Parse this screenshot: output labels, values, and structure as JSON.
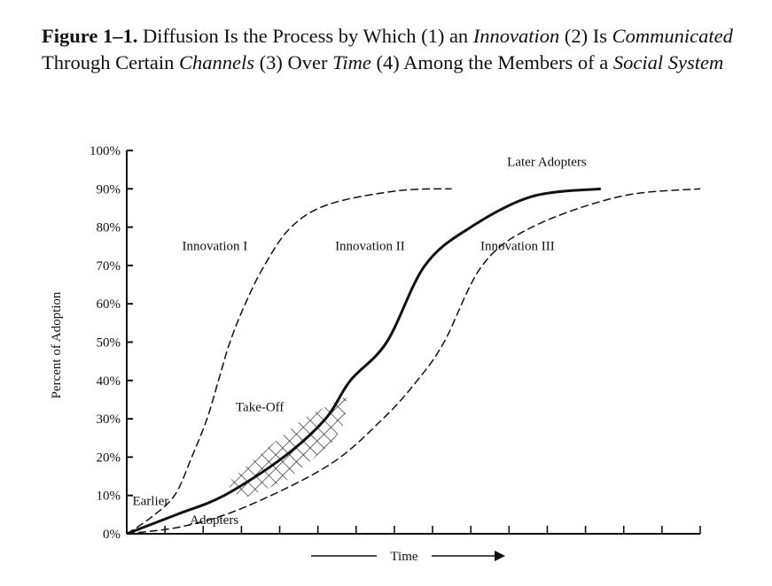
{
  "caption": {
    "segments": [
      {
        "text": "Figure 1–1.",
        "style": "bold"
      },
      {
        "text": " Diffusion Is the Process by Which (1) an ",
        "style": "normal"
      },
      {
        "text": "Innovation",
        "style": "italic"
      },
      {
        "text": " (2) Is ",
        "style": "normal"
      },
      {
        "text": "Communicated",
        "style": "italic"
      },
      {
        "text": " Through Certain ",
        "style": "normal"
      },
      {
        "text": "Channels",
        "style": "italic"
      },
      {
        "text": " (3) Over ",
        "style": "normal"
      },
      {
        "text": "Time",
        "style": "italic"
      },
      {
        "text": " (4) Among the Members of a ",
        "style": "normal"
      },
      {
        "text": "Social System",
        "style": "italic"
      }
    ]
  },
  "chart_data": {
    "type": "line",
    "title": "",
    "xlabel": "Time",
    "ylabel": "Percent of Adoption",
    "xlim": [
      0,
      15
    ],
    "ylim": [
      0,
      100
    ],
    "x_ticks_count": 15,
    "x_tick_labels": [],
    "y_ticks": [
      0,
      10,
      20,
      30,
      40,
      50,
      60,
      70,
      80,
      90,
      100
    ],
    "y_tick_labels": [
      "0%",
      "10%",
      "20%",
      "30%",
      "40%",
      "50%",
      "60%",
      "70%",
      "80%",
      "90%",
      "100%"
    ],
    "grid": false,
    "legend": "none",
    "series": [
      {
        "name": "Innovation I",
        "style": "dashed",
        "x": [
          0,
          0.6,
          1.25,
          1.7,
          2.1,
          2.4,
          2.7,
          3.1,
          3.6,
          4.3,
          5.3,
          7.1,
          8.5
        ],
        "y": [
          0,
          4,
          10,
          20,
          30,
          40,
          50,
          60,
          70,
          80,
          86,
          89.5,
          90
        ]
      },
      {
        "name": "Innovation II",
        "style": "solid",
        "x": [
          0,
          1.3,
          2.55,
          4.1,
          5.2,
          5.85,
          6.8,
          7.8,
          9.0,
          10.6,
          12.4
        ],
        "y": [
          0,
          5,
          10,
          20,
          30,
          40,
          50,
          70,
          80,
          88,
          90
        ]
      },
      {
        "name": "Innovation III",
        "style": "dashed",
        "x": [
          0,
          1.5,
          3.1,
          5.3,
          6.7,
          7.6,
          8.3,
          9.3,
          10.6,
          12.9,
          15
        ],
        "y": [
          0,
          2,
          7,
          18,
          30,
          40,
          50,
          70,
          80,
          88,
          90
        ]
      }
    ],
    "annotations": [
      {
        "text": "Innovation I",
        "x": 1.45,
        "y": 74
      },
      {
        "text": "Innovation II",
        "x": 5.45,
        "y": 74
      },
      {
        "text": "Innovation III",
        "x": 9.25,
        "y": 74
      },
      {
        "text": "Later Adopters",
        "x": 9.95,
        "y": 96
      },
      {
        "text": "Take-Off",
        "x": 2.85,
        "y": 32
      },
      {
        "text": "Earlier",
        "x": 0.15,
        "y": 7.5
      },
      {
        "text": "Adopters",
        "x": 1.65,
        "y": 2.5
      }
    ],
    "takeoff_region": {
      "x": [
        2.6,
        3.0,
        4.2,
        5.4,
        5.7,
        5.75,
        4.6,
        3.4
      ],
      "y": [
        13,
        9,
        14,
        24,
        29,
        36,
        30,
        20
      ]
    }
  }
}
